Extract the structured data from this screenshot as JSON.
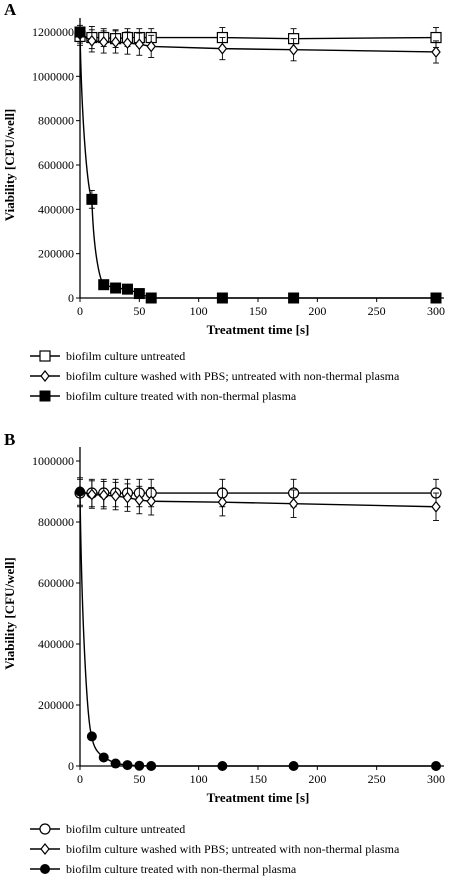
{
  "chart_data": [
    {
      "panel_label": "A",
      "type": "line",
      "xlabel": "Treatment time [s]",
      "ylabel": "Viability [CFU/well]",
      "xlim": [
        0,
        300
      ],
      "ylim": [
        0,
        1200000
      ],
      "xticks": [
        0,
        50,
        100,
        150,
        200,
        250,
        300
      ],
      "yticks": [
        0,
        200000,
        400000,
        600000,
        800000,
        1000000,
        1200000
      ],
      "series": [
        {
          "name": "biofilm culture untreated",
          "marker": "square-open",
          "x": [
            0,
            10,
            20,
            30,
            40,
            50,
            60,
            120,
            180,
            300
          ],
          "y": [
            1180000,
            1175000,
            1175000,
            1170000,
            1175000,
            1175000,
            1175000,
            1175000,
            1170000,
            1175000
          ],
          "err": [
            40000,
            50000,
            40000,
            40000,
            40000,
            40000,
            40000,
            45000,
            45000,
            45000
          ]
        },
        {
          "name": "biofilm culture washed with PBS; untreated with non-thermal plasma",
          "marker": "diamond-open",
          "x": [
            0,
            10,
            20,
            30,
            40,
            50,
            60,
            120,
            180,
            300
          ],
          "y": [
            1190000,
            1160000,
            1155000,
            1155000,
            1150000,
            1145000,
            1135000,
            1125000,
            1120000,
            1110000
          ],
          "err": [
            40000,
            50000,
            50000,
            50000,
            50000,
            50000,
            50000,
            50000,
            50000,
            50000
          ]
        },
        {
          "name": "biofilm culture treated with non-thermal plasma",
          "marker": "square-filled",
          "x": [
            0,
            10,
            20,
            30,
            40,
            50,
            60,
            120,
            180,
            300
          ],
          "y": [
            1200000,
            445000,
            60000,
            45000,
            40000,
            20000,
            0,
            0,
            0,
            0
          ],
          "err": [
            0,
            40000,
            0,
            0,
            0,
            0,
            0,
            0,
            0,
            0
          ]
        }
      ]
    },
    {
      "panel_label": "B",
      "type": "line",
      "xlabel": "Treatment time [s]",
      "ylabel": "Viability [CFU/well]",
      "xlim": [
        0,
        300
      ],
      "ylim": [
        0,
        1000000
      ],
      "xticks": [
        0,
        50,
        100,
        150,
        200,
        250,
        300
      ],
      "yticks": [
        0,
        200000,
        400000,
        600000,
        800000,
        1000000
      ],
      "series": [
        {
          "name": "biofilm culture untreated",
          "marker": "circle-open",
          "x": [
            0,
            10,
            20,
            30,
            40,
            50,
            60,
            120,
            180,
            300
          ],
          "y": [
            895000,
            895000,
            895000,
            895000,
            895000,
            895000,
            895000,
            895000,
            895000,
            895000
          ],
          "err": [
            45000,
            45000,
            45000,
            45000,
            45000,
            45000,
            45000,
            45000,
            45000,
            45000
          ]
        },
        {
          "name": "biofilm culture washed with PBS; untreated with non-thermal plasma",
          "marker": "diamond-open",
          "x": [
            0,
            10,
            20,
            30,
            40,
            50,
            60,
            120,
            180,
            300
          ],
          "y": [
            900000,
            890000,
            888000,
            885000,
            880000,
            872000,
            868000,
            865000,
            860000,
            850000
          ],
          "err": [
            45000,
            45000,
            45000,
            45000,
            45000,
            45000,
            45000,
            45000,
            45000,
            45000
          ]
        },
        {
          "name": "biofilm culture treated with non-thermal plasma",
          "marker": "circle-filled",
          "x": [
            0,
            10,
            20,
            30,
            40,
            50,
            60,
            120,
            180,
            300
          ],
          "y": [
            900000,
            97000,
            28000,
            8000,
            3000,
            1000,
            0,
            0,
            0,
            0
          ],
          "err": [
            0,
            0,
            0,
            0,
            0,
            0,
            0,
            0,
            0,
            0
          ]
        }
      ]
    }
  ]
}
